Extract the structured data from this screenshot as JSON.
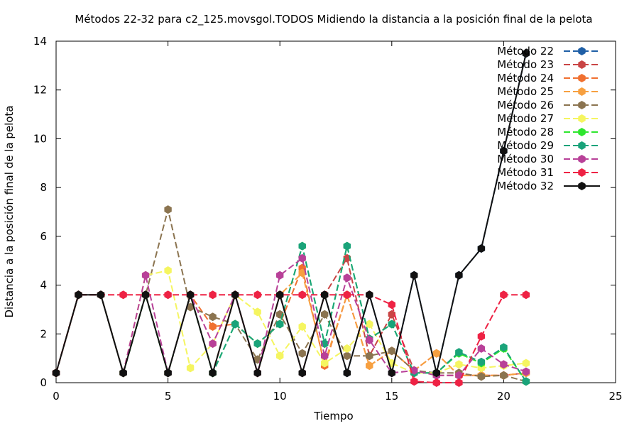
{
  "chart_data": {
    "type": "line",
    "title": "Métodos 22-32 para c2_125.movsgol.TODOS Midiendo la distancia a la posición final de la pelota",
    "xlabel": "Tiempo",
    "ylabel": "Distancia a la posición final de la pelota",
    "xlim": [
      0,
      25
    ],
    "ylim": [
      0,
      14
    ],
    "xticks": [
      0,
      5,
      10,
      15,
      20,
      25
    ],
    "yticks": [
      0,
      2,
      4,
      6,
      8,
      10,
      12,
      14
    ],
    "grid": false,
    "legend_position": "top-right",
    "x": [
      0,
      1,
      2,
      3,
      4,
      5,
      6,
      7,
      8,
      9,
      10,
      11,
      12,
      13,
      14,
      15,
      16,
      17,
      18,
      19,
      20,
      21
    ],
    "series": [
      {
        "name": "Método 22",
        "color": "#1f5fa6",
        "values": [
          0.4,
          3.6,
          3.6,
          0.4,
          3.6,
          0.4,
          3.6,
          0.4,
          3.6,
          0.4,
          3.6,
          0.4,
          3.6,
          0.4,
          3.6,
          0.4,
          4.4,
          0.4,
          4.4,
          5.5,
          9.5,
          13.5
        ]
      },
      {
        "name": "Método 23",
        "color": "#c94545",
        "values": [
          0.4,
          3.6,
          3.6,
          0.4,
          3.6,
          0.4,
          3.6,
          0.4,
          3.6,
          0.4,
          3.6,
          0.4,
          3.6,
          5.1,
          1.1,
          2.8,
          0.5,
          0.3,
          0.3,
          0.3,
          0.3,
          0.4
        ]
      },
      {
        "name": "Método 24",
        "color": "#f07030",
        "values": [
          0.4,
          3.6,
          3.6,
          0.4,
          3.6,
          0.4,
          3.6,
          2.3,
          2.4,
          1.6,
          2.4,
          4.7,
          0.7,
          3.6,
          0.7,
          1.3,
          0.5,
          1.2,
          0.3,
          0.3,
          0.3,
          0.4
        ]
      },
      {
        "name": "Método 25",
        "color": "#f7a040",
        "values": [
          0.4,
          3.6,
          3.6,
          0.4,
          3.6,
          0.4,
          3.6,
          0.4,
          3.6,
          0.4,
          3.6,
          4.5,
          0.8,
          3.6,
          0.7,
          1.3,
          0.5,
          1.2,
          0.3,
          0.3,
          0.3,
          0.4
        ]
      },
      {
        "name": "Método 26",
        "color": "#8b7450",
        "values": [
          0.4,
          3.6,
          3.6,
          0.4,
          3.6,
          7.1,
          3.1,
          2.7,
          2.4,
          0.95,
          2.8,
          1.2,
          2.8,
          1.1,
          1.1,
          1.3,
          0.5,
          0.4,
          0.4,
          0.25,
          0.3,
          0.05
        ]
      },
      {
        "name": "Método 27",
        "color": "#f5f560",
        "values": [
          0.4,
          3.6,
          3.6,
          0.4,
          4.4,
          4.6,
          0.6,
          1.6,
          3.6,
          2.9,
          1.1,
          2.3,
          0.8,
          1.4,
          2.4,
          0.8,
          0.4,
          0.4,
          0.75,
          0.6,
          0.7,
          0.8
        ]
      },
      {
        "name": "Método 28",
        "color": "#2ee62e",
        "values": [
          0.4,
          3.6,
          3.6,
          0.4,
          3.6,
          0.4,
          3.6,
          0.4,
          2.4,
          1.6,
          2.4,
          5.6,
          1.6,
          5.6,
          1.8,
          2.4,
          0.4,
          0.4,
          1.2,
          0.8,
          1.4,
          0.05
        ]
      },
      {
        "name": "Método 29",
        "color": "#1aa37a",
        "values": [
          0.4,
          3.6,
          3.6,
          0.4,
          3.6,
          0.4,
          3.6,
          0.4,
          2.4,
          1.6,
          2.4,
          5.6,
          1.6,
          5.6,
          1.8,
          2.4,
          0.4,
          0.4,
          1.25,
          0.85,
          1.45,
          0.05
        ]
      },
      {
        "name": "Método 30",
        "color": "#b84098",
        "values": [
          0.4,
          3.6,
          3.6,
          0.4,
          4.4,
          0.4,
          3.6,
          1.6,
          3.6,
          0.4,
          4.4,
          5.1,
          1.1,
          4.3,
          1.75,
          0.4,
          0.5,
          0.3,
          0.3,
          1.4,
          0.75,
          0.45
        ]
      },
      {
        "name": "Método 31",
        "color": "#ee2244",
        "values": [
          0.4,
          3.6,
          3.6,
          3.6,
          3.6,
          3.6,
          3.6,
          3.6,
          3.6,
          3.6,
          3.6,
          3.6,
          3.6,
          3.6,
          3.6,
          3.2,
          0.05,
          0.0,
          0.0,
          1.9,
          3.6,
          3.6
        ]
      },
      {
        "name": "Método 32",
        "color": "#111111",
        "values": [
          0.4,
          3.6,
          3.6,
          0.4,
          3.6,
          0.4,
          3.6,
          0.4,
          3.6,
          0.4,
          3.6,
          0.4,
          3.6,
          0.4,
          3.6,
          0.4,
          4.4,
          0.4,
          4.4,
          5.5,
          9.5,
          13.5
        ]
      }
    ]
  }
}
